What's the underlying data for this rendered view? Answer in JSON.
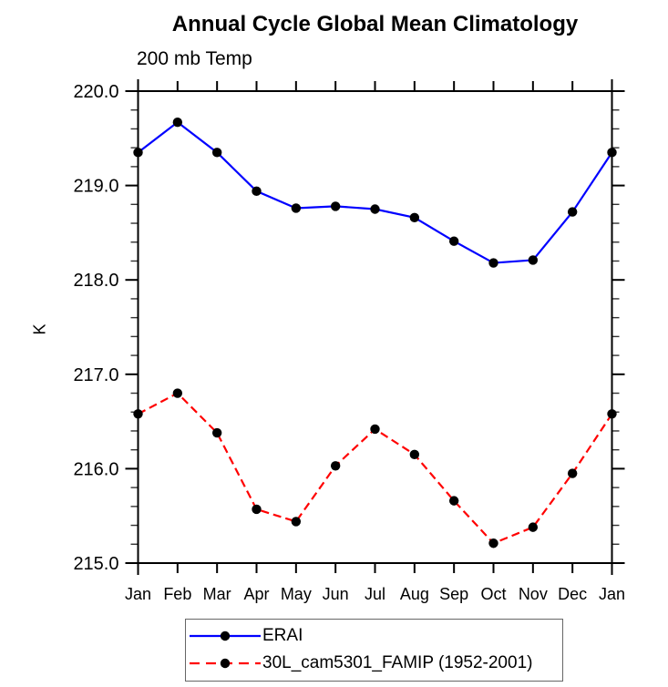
{
  "chart_data": {
    "type": "line",
    "title": "Annual Cycle Global Mean Climatology",
    "subtitle": "200 mb Temp",
    "ylabel": "K",
    "x_categories": [
      "Jan",
      "Feb",
      "Mar",
      "Apr",
      "May",
      "Jun",
      "Jul",
      "Aug",
      "Sep",
      "Oct",
      "Nov",
      "Dec",
      "Jan"
    ],
    "ylim": [
      215.0,
      220.0
    ],
    "ytick_labels": [
      "215.0",
      "216.0",
      "217.0",
      "218.0",
      "219.0",
      "220.0"
    ],
    "ytick_minor_step": 0.2,
    "grid": false,
    "legend_position": "bottom",
    "axis_color": "#000000",
    "series": [
      {
        "name": "ERAI",
        "color": "#0000ff",
        "style": "solid",
        "marker": "circle",
        "marker_color": "#000000",
        "values": [
          219.35,
          219.67,
          219.35,
          218.94,
          218.76,
          218.78,
          218.75,
          218.66,
          218.41,
          218.18,
          218.21,
          218.72,
          219.35
        ]
      },
      {
        "name": "30L_cam5301_FAMIP (1952-2001)",
        "color": "#ff0000",
        "style": "dashed",
        "marker": "circle",
        "marker_color": "#000000",
        "values": [
          216.58,
          216.8,
          216.38,
          215.57,
          215.44,
          216.03,
          216.42,
          216.15,
          215.66,
          215.21,
          215.38,
          215.95,
          216.58
        ]
      }
    ]
  }
}
